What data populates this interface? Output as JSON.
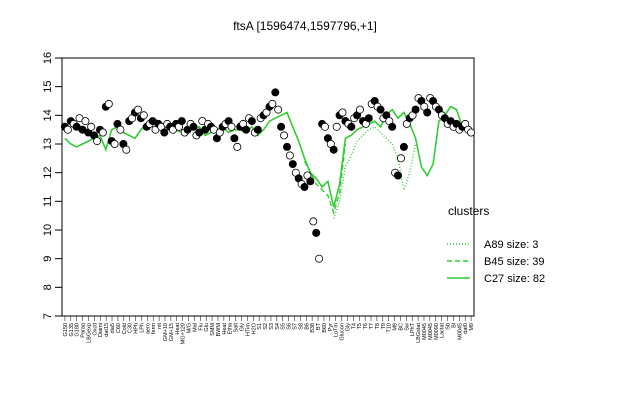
{
  "chart_data": {
    "type": "line",
    "title": "ftsA [1596474,1597796,+1]",
    "xlabel": "",
    "ylabel": "",
    "ylim": [
      7,
      16
    ],
    "yticks": [
      7,
      8,
      9,
      10,
      11,
      12,
      13,
      14,
      15,
      16
    ],
    "grid": false,
    "legend_position": "right",
    "legend": {
      "title": "clusters",
      "entries": [
        {
          "label": "A89 size: 3",
          "style": "dotted",
          "color": "#33cc33"
        },
        {
          "label": "B45 size: 39",
          "style": "dashed",
          "color": "#33cc33"
        },
        {
          "label": "C27 size: 82",
          "style": "solid",
          "color": "#33cc33"
        }
      ]
    },
    "x_labels_visible": [
      "G150",
      "G135",
      "G180",
      "Paraq",
      "LBGexp",
      "Oxctl",
      "Diami",
      "dat15",
      "dia5",
      "C60",
      "Cold",
      "C30",
      "HPh",
      "LPh",
      "aero",
      "ferm",
      "nit",
      "GM+10",
      "GM+15",
      "Heat",
      "MG+120",
      "M/G",
      "Mal",
      "Flu",
      "Glu",
      "SMM",
      "BWM",
      "Heat",
      "Etha",
      "Salt",
      "Gly",
      "HTim",
      "H2O",
      "S1",
      "S2",
      "S3",
      "S4",
      "S5",
      "S6",
      "S7",
      "S8",
      "B6",
      "B38",
      "BT",
      "B60",
      "Pyr",
      "LoTm",
      "Glucon",
      "Gly",
      "T4",
      "T5",
      "T6",
      "T7",
      "T8",
      "T9",
      "T10",
      "M9",
      "BC",
      "Sw",
      "LPhT",
      "LBGstat",
      "M0045",
      "M0045",
      "M0090",
      "Lactat",
      "Sb",
      "Bl",
      "M0045",
      "dat0",
      "M9"
    ],
    "series": [
      {
        "name": "C27 size: 82",
        "style": "solid",
        "color": "#33cc33",
        "x": [
          1,
          3,
          5,
          7,
          9,
          11,
          13,
          15,
          17,
          19,
          21,
          23,
          25,
          27,
          29,
          31,
          33,
          35,
          37,
          39,
          41,
          43,
          45,
          47,
          49,
          51,
          53,
          55,
          57,
          59,
          61,
          63,
          65,
          67,
          69,
          71,
          73,
          75,
          77,
          79,
          81,
          83,
          85,
          87,
          89,
          91,
          93,
          95,
          97,
          99,
          101,
          103,
          105,
          107,
          109,
          111,
          113,
          115,
          117,
          119,
          121,
          123,
          125,
          127,
          129,
          131,
          133,
          135,
          137
        ],
        "y": [
          13.2,
          13.0,
          12.9,
          13.0,
          13.1,
          13.2,
          13.3,
          12.8,
          13.5,
          13.6,
          13.4,
          13.3,
          13.2,
          13.5,
          13.7,
          13.9,
          13.8,
          13.6,
          13.5,
          13.5,
          13.4,
          13.6,
          13.5,
          13.6,
          13.3,
          13.4,
          13.5,
          13.6,
          13.4,
          13.5,
          13.5,
          13.4,
          13.6,
          13.3,
          13.5,
          13.8,
          13.9,
          14.0,
          14.1,
          13.6,
          13.1,
          12.5,
          12.0,
          11.8,
          11.5,
          11.7,
          10.8,
          11.6,
          13.2,
          13.3,
          13.5,
          13.6,
          13.7,
          13.8,
          13.6,
          14.0,
          14.2,
          13.9,
          14.1,
          13.7,
          13.2,
          12.2,
          11.9,
          12.3,
          13.8,
          14.0,
          14.3,
          14.2,
          13.6
        ]
      },
      {
        "name": "B45 size: 39",
        "style": "dashed",
        "color": "#33cc33",
        "x": [
          83,
          85,
          87,
          89,
          91,
          93,
          95,
          97
        ],
        "y": [
          12.4,
          12.0,
          11.6,
          11.4,
          11.2,
          10.6,
          11.3,
          13.0
        ]
      },
      {
        "name": "A89 size: 3",
        "style": "dotted",
        "color": "#33cc33",
        "x": [
          93,
          95,
          97,
          99,
          101,
          103,
          105,
          107,
          109,
          111,
          113,
          115,
          117,
          119,
          121
        ],
        "y": [
          10.4,
          11.0,
          12.2,
          12.6,
          13.1,
          13.3,
          13.5,
          13.6,
          13.4,
          13.2,
          13.0,
          12.5,
          11.4,
          12.0,
          13.0
        ]
      }
    ],
    "points_x": [
      1,
      2,
      3,
      4,
      5,
      6,
      7,
      8,
      9,
      10,
      11,
      12,
      13,
      14,
      15,
      16,
      17,
      18,
      19,
      20,
      21,
      22,
      23,
      24,
      25,
      26,
      27,
      28,
      29,
      30,
      31,
      32,
      33,
      34,
      35,
      36,
      37,
      38,
      39,
      40,
      41,
      42,
      43,
      44,
      45,
      46,
      47,
      48,
      49,
      50,
      51,
      52,
      53,
      54,
      55,
      56,
      57,
      58,
      59,
      60,
      61,
      62,
      63,
      64,
      65,
      66,
      67,
      68,
      69,
      70,
      71,
      72,
      73,
      74,
      75,
      76,
      77,
      78,
      79,
      80,
      81,
      82,
      83,
      84,
      85,
      86,
      87,
      88,
      89,
      90,
      91,
      92,
      93,
      94,
      95,
      96,
      97,
      98,
      99,
      100,
      101,
      102,
      103,
      104,
      105,
      106,
      107,
      108,
      109,
      110,
      111,
      112,
      113,
      114,
      115,
      116,
      117,
      118,
      119,
      120,
      121,
      122,
      123,
      124,
      125,
      126,
      127,
      128,
      129,
      130,
      131,
      132,
      133,
      134,
      135,
      136,
      137,
      138,
      139,
      140
    ],
    "points_y": [
      13.6,
      13.5,
      13.8,
      13.7,
      13.6,
      13.9,
      13.5,
      13.8,
      13.4,
      13.6,
      13.3,
      13.1,
      13.5,
      13.4,
      14.3,
      14.4,
      13.1,
      13.0,
      13.7,
      13.5,
      13.0,
      12.8,
      13.8,
      13.9,
      14.1,
      14.2,
      13.9,
      14.0,
      13.6,
      13.7,
      13.8,
      13.5,
      13.7,
      13.6,
      13.4,
      13.7,
      13.6,
      13.5,
      13.7,
      13.6,
      13.8,
      13.4,
      13.5,
      13.7,
      13.6,
      13.3,
      13.4,
      13.8,
      13.5,
      13.7,
      13.6,
      13.5,
      13.2,
      13.4,
      13.6,
      13.7,
      13.8,
      13.6,
      13.2,
      12.9,
      13.6,
      13.7,
      13.5,
      13.9,
      13.8,
      13.4,
      13.5,
      13.9,
      14.0,
      14.1,
      14.3,
      14.4,
      14.8,
      14.2,
      13.6,
      13.3,
      12.9,
      12.6,
      12.3,
      12.0,
      11.8,
      11.6,
      11.5,
      11.9,
      11.7,
      10.3,
      9.9,
      9.0,
      13.7,
      13.6,
      13.2,
      13.0,
      12.8,
      13.6,
      14.0,
      14.1,
      13.8,
      13.7,
      13.6,
      13.9,
      14.0,
      14.2,
      13.8,
      13.7,
      13.9,
      14.4,
      14.5,
      14.3,
      14.2,
      13.9,
      14.0,
      13.8,
      13.6,
      12.0,
      11.9,
      12.5,
      12.9,
      13.7,
      13.9,
      14.0,
      14.2,
      14.6,
      14.5,
      14.3,
      14.1,
      14.6,
      14.5,
      14.3,
      14.2,
      14.0,
      13.9,
      13.7,
      13.8,
      13.6,
      13.7,
      13.5,
      13.6,
      13.7,
      13.5,
      13.4
    ],
    "points_filled": [
      true,
      false,
      true,
      false,
      true,
      false,
      true,
      false,
      true,
      false,
      true,
      false,
      true,
      false,
      true,
      false,
      true,
      false,
      true,
      false,
      true,
      false,
      true,
      false,
      true,
      false,
      true,
      false,
      true,
      false,
      true,
      false,
      true,
      false,
      true,
      false,
      true,
      false,
      true,
      false,
      true,
      false,
      true,
      false,
      true,
      false,
      true,
      false,
      true,
      false,
      true,
      false,
      true,
      false,
      true,
      false,
      true,
      false,
      true,
      false,
      true,
      false,
      true,
      false,
      true,
      false,
      true,
      false,
      true,
      false,
      true,
      false,
      true,
      false,
      true,
      false,
      true,
      false,
      true,
      false,
      true,
      false,
      true,
      false,
      true,
      false,
      true,
      false,
      true,
      false,
      true,
      false,
      true,
      false,
      true,
      false,
      true,
      false,
      true,
      false,
      true,
      false,
      true,
      false,
      true,
      false,
      true,
      false,
      true,
      false,
      true,
      false,
      true,
      false,
      true,
      false,
      true,
      false,
      true,
      false,
      true,
      false,
      true,
      false,
      true,
      false,
      true,
      false,
      true,
      false,
      true,
      false,
      true,
      false,
      true,
      false,
      true,
      false
    ]
  }
}
